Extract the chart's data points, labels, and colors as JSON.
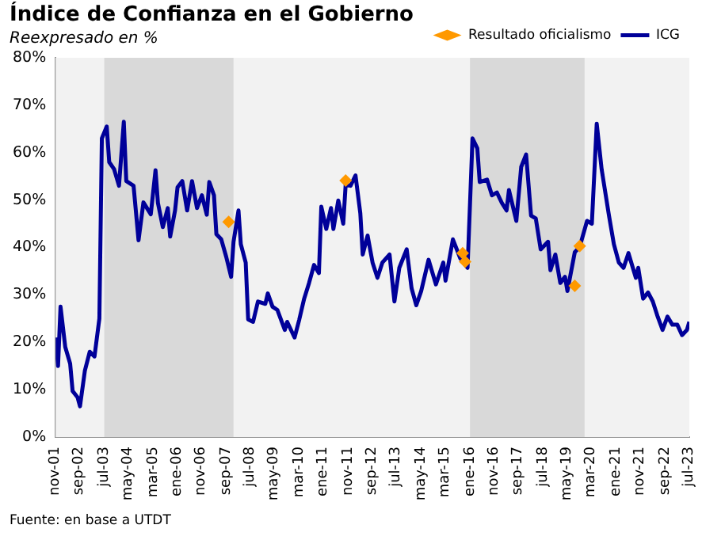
{
  "chart_data": {
    "type": "line",
    "title": "Índice de Confianza en el Gobierno",
    "subtitle": "Reexpresado en %",
    "annotations": [
      "Fuente: en base a UTDT"
    ],
    "legend": "top right",
    "grid": false,
    "xlim": [
      "2001-11",
      "2023-07"
    ],
    "xticks": [
      {
        "value": "2001-11",
        "label": "nov-01"
      },
      {
        "value": "2002-09",
        "label": "sep-02"
      },
      {
        "value": "2003-07",
        "label": "jul-03"
      },
      {
        "value": "2004-05",
        "label": "may-04"
      },
      {
        "value": "2005-03",
        "label": "mar-05"
      },
      {
        "value": "2006-01",
        "label": "ene-06"
      },
      {
        "value": "2006-11",
        "label": "nov-06"
      },
      {
        "value": "2007-09",
        "label": "sep-07"
      },
      {
        "value": "2008-07",
        "label": "jul-08"
      },
      {
        "value": "2009-05",
        "label": "may-09"
      },
      {
        "value": "2010-03",
        "label": "mar-10"
      },
      {
        "value": "2011-01",
        "label": "ene-11"
      },
      {
        "value": "2011-11",
        "label": "nov-11"
      },
      {
        "value": "2012-09",
        "label": "sep-12"
      },
      {
        "value": "2013-07",
        "label": "jul-13"
      },
      {
        "value": "2014-05",
        "label": "may-14"
      },
      {
        "value": "2015-03",
        "label": "mar-15"
      },
      {
        "value": "2016-01",
        "label": "ene-16"
      },
      {
        "value": "2016-11",
        "label": "nov-16"
      },
      {
        "value": "2017-09",
        "label": "sep-17"
      },
      {
        "value": "2018-07",
        "label": "jul-18"
      },
      {
        "value": "2019-05",
        "label": "may-19"
      },
      {
        "value": "2020-03",
        "label": "mar-20"
      },
      {
        "value": "2021-01",
        "label": "ene-21"
      },
      {
        "value": "2021-11",
        "label": "nov-21"
      },
      {
        "value": "2022-09",
        "label": "sep-22"
      },
      {
        "value": "2023-07",
        "label": "jul-23"
      }
    ],
    "ylim": [
      0,
      80
    ],
    "yticks": [
      {
        "value": 0,
        "label": "0%"
      },
      {
        "value": 10,
        "label": "10%"
      },
      {
        "value": 20,
        "label": "20%"
      },
      {
        "value": 30,
        "label": "30%"
      },
      {
        "value": 40,
        "label": "40%"
      },
      {
        "value": 50,
        "label": "50%"
      },
      {
        "value": 60,
        "label": "60%"
      },
      {
        "value": 70,
        "label": "70%"
      },
      {
        "value": 80,
        "label": "80%"
      }
    ],
    "bands": [
      {
        "axis": "x",
        "from": "2003-07",
        "to": "2007-12",
        "color": "#d9d9d9"
      },
      {
        "axis": "x",
        "from": "2016-01",
        "to": "2019-12",
        "color": "#d9d9d9"
      }
    ],
    "series": [
      {
        "name": "ICG",
        "color": "#000099",
        "marker": "none",
        "line_style": "solid",
        "x": [
          "2001-11",
          "2001-12",
          "2002-01",
          "2002-03",
          "2002-05",
          "2002-06",
          "2002-08",
          "2002-09",
          "2002-11",
          "2003-01",
          "2003-03",
          "2003-05",
          "2003-06",
          "2003-08",
          "2003-09",
          "2003-11",
          "2004-01",
          "2004-03",
          "2004-04",
          "2004-07",
          "2004-09",
          "2004-11",
          "2005-02",
          "2005-04",
          "2005-05",
          "2005-07",
          "2005-09",
          "2005-10",
          "2005-12",
          "2006-01",
          "2006-03",
          "2006-05",
          "2006-07",
          "2006-09",
          "2006-11",
          "2007-01",
          "2007-02",
          "2007-04",
          "2007-05",
          "2007-07",
          "2007-09",
          "2007-11",
          "2007-12",
          "2008-02",
          "2008-03",
          "2008-05",
          "2008-06",
          "2008-08",
          "2008-10",
          "2009-01",
          "2009-02",
          "2009-04",
          "2009-06",
          "2009-09",
          "2009-10",
          "2010-01",
          "2010-03",
          "2010-05",
          "2010-07",
          "2010-09",
          "2010-11",
          "2010-12",
          "2011-02",
          "2011-04",
          "2011-05",
          "2011-07",
          "2011-09",
          "2011-10",
          "2011-12",
          "2012-02",
          "2012-04",
          "2012-05",
          "2012-07",
          "2012-09",
          "2012-11",
          "2013-01",
          "2013-04",
          "2013-06",
          "2013-08",
          "2013-11",
          "2014-01",
          "2014-03",
          "2014-05",
          "2014-08",
          "2014-11",
          "2015-02",
          "2015-03",
          "2015-06",
          "2015-09",
          "2015-12",
          "2016-02",
          "2016-04",
          "2016-05",
          "2016-08",
          "2016-10",
          "2016-12",
          "2017-02",
          "2017-04",
          "2017-05",
          "2017-08",
          "2017-10",
          "2017-12",
          "2018-02",
          "2018-04",
          "2018-06",
          "2018-09",
          "2018-10",
          "2018-12",
          "2019-02",
          "2019-04",
          "2019-05",
          "2019-08",
          "2019-10",
          "2020-01",
          "2020-03",
          "2020-05",
          "2020-07",
          "2020-10",
          "2020-12",
          "2021-02",
          "2021-04",
          "2021-06",
          "2021-09",
          "2021-10",
          "2021-12",
          "2022-02",
          "2022-04",
          "2022-06",
          "2022-08",
          "2022-10",
          "2022-12",
          "2023-02",
          "2023-04",
          "2023-06",
          "2023-07"
        ],
        "values": [
          21,
          15,
          27.5,
          19,
          15.5,
          9.7,
          8.4,
          6.5,
          14,
          18,
          17,
          25,
          63,
          65.5,
          58,
          56.5,
          53,
          66.5,
          54,
          53,
          41.5,
          49.5,
          47,
          56.3,
          49.4,
          44.3,
          48.3,
          42.3,
          47.8,
          52.7,
          54,
          47.8,
          54,
          48.3,
          51,
          46.9,
          53.8,
          51,
          42.8,
          41.7,
          38,
          33.8,
          41.2,
          47.8,
          40.7,
          36.8,
          24.8,
          24.3,
          28.6,
          28.1,
          30.3,
          27.5,
          26.8,
          22.6,
          24.3,
          21,
          24.8,
          29.2,
          32.5,
          36.3,
          34.6,
          48.6,
          43.9,
          48.3,
          43.9,
          49.9,
          45,
          53.2,
          53,
          55.2,
          47.2,
          38.5,
          42.5,
          36.8,
          33.6,
          36.8,
          38.5,
          28.6,
          35.7,
          39.6,
          31.4,
          27.8,
          30.8,
          37.4,
          32.2,
          36.8,
          33,
          41.7,
          37.7,
          35.7,
          63,
          60.9,
          53.8,
          54.3,
          51,
          51.6,
          49.4,
          47.8,
          52.1,
          45.6,
          57,
          59.6,
          46.7,
          46.1,
          39.6,
          41.2,
          35.2,
          38.5,
          32.5,
          33.8,
          30.8,
          39,
          40.1,
          45.6,
          45,
          66.1,
          56.5,
          46.7,
          40.7,
          36.8,
          35.7,
          38.8,
          33.6,
          35.7,
          29.2,
          30.5,
          28.6,
          25.4,
          22.6,
          25.4,
          23.7,
          23.7,
          21.5,
          22.6,
          24.3
        ]
      },
      {
        "name": "Resultado oficialismo",
        "type": "scatter",
        "color": "#ff9900",
        "marker": "diamond",
        "x": [
          "2007-10",
          "2011-10",
          "2015-10",
          "2015-11",
          "2019-08",
          "2019-10"
        ],
        "values": [
          45.4,
          54.1,
          38.8,
          37,
          31.9,
          40.3
        ]
      }
    ]
  }
}
